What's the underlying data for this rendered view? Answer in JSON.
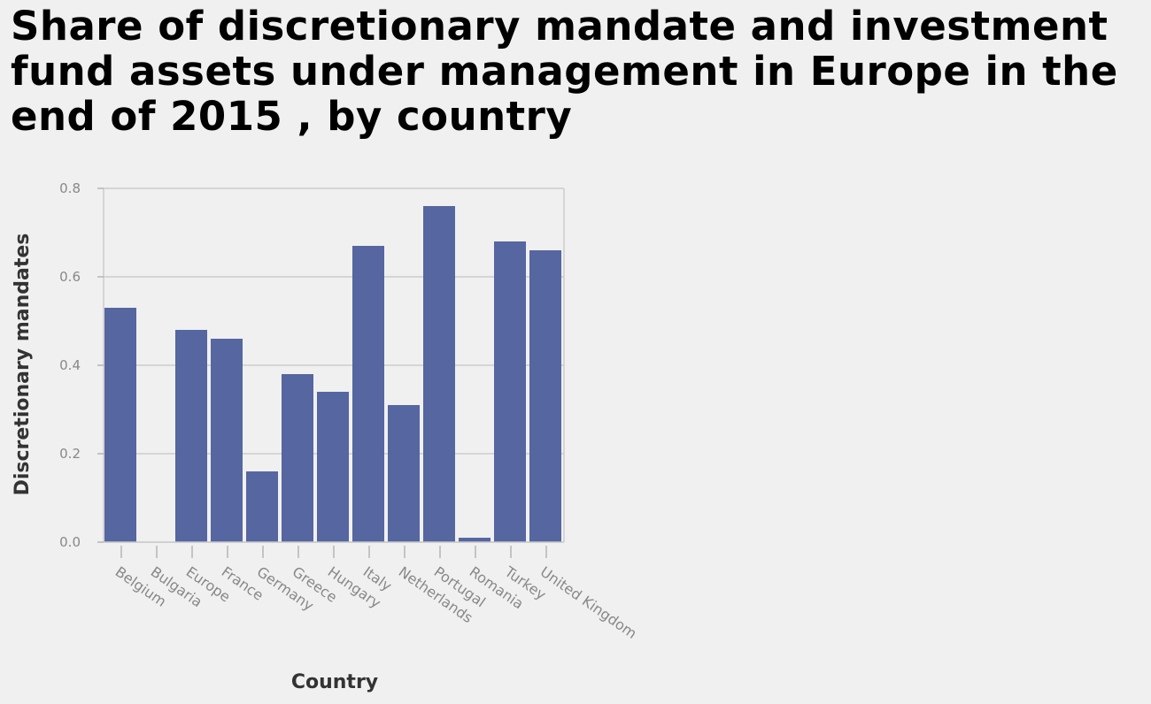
{
  "chart_data": {
    "type": "bar",
    "title": "Share of discretionary mandate and investment fund assets under management in Europe in the end of 2015 , by country",
    "xlabel": "Country",
    "ylabel": "Discretionary mandates",
    "categories": [
      "Belgium",
      "Bulgaria",
      "Europe",
      "France",
      "Germany",
      "Greece",
      "Hungary",
      "Italy",
      "Netherlands",
      "Portugal",
      "Romania",
      "Turkey",
      "United Kingdom"
    ],
    "values": [
      0.53,
      0.0,
      0.48,
      0.46,
      0.16,
      0.38,
      0.34,
      0.67,
      0.31,
      0.76,
      0.01,
      0.68,
      0.66
    ],
    "ylim": [
      0,
      0.8
    ],
    "yticks": [
      "0.0",
      "0.2",
      "0.4",
      "0.6",
      "0.8"
    ],
    "grid": true,
    "colors": {
      "bar": "#5566a0",
      "grid": "#cccccc",
      "background": "#f0f0f0"
    }
  }
}
